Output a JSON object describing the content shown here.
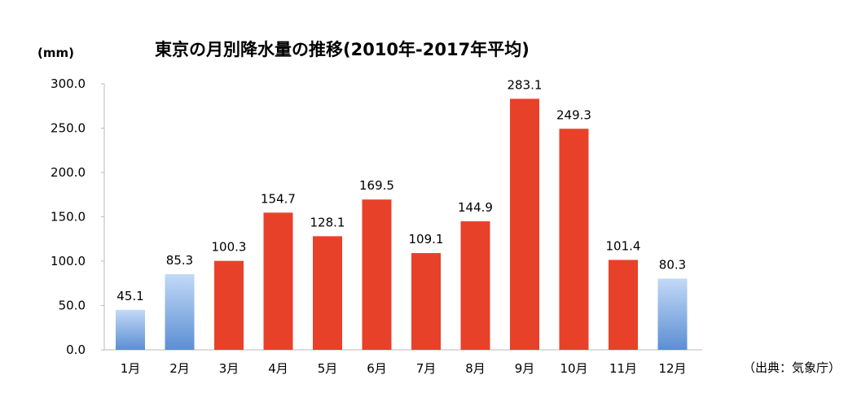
{
  "chart_data": {
    "type": "bar",
    "title": "東京の月別降水量の推移(2010年-2017年平均)",
    "ylabel": "(mm)",
    "xlabel": "",
    "categories": [
      "1月",
      "2月",
      "3月",
      "4月",
      "5月",
      "6月",
      "7月",
      "8月",
      "9月",
      "10月",
      "11月",
      "12月"
    ],
    "values": [
      45.1,
      85.3,
      100.3,
      154.7,
      128.1,
      169.5,
      109.1,
      144.9,
      283.1,
      249.3,
      101.4,
      80.3
    ],
    "data_labels": [
      "45.1",
      "85.3",
      "100.3",
      "154.7",
      "128.1",
      "169.5",
      "109.1",
      "144.9",
      "283.1",
      "249.3",
      "101.4",
      "80.3"
    ],
    "ylim": [
      0,
      300
    ],
    "yticks": [
      "0.0",
      "50.0",
      "100.0",
      "150.0",
      "200.0",
      "250.0",
      "300.0"
    ],
    "grid": false,
    "legend": "none",
    "bar_colors": {
      "red": "#e8412a",
      "blue_top": "#c3d9f7",
      "blue_bottom": "#5b8fd3"
    },
    "blue_months": [
      "1月",
      "2月",
      "12月"
    ],
    "source": "（出典：気象庁）"
  }
}
